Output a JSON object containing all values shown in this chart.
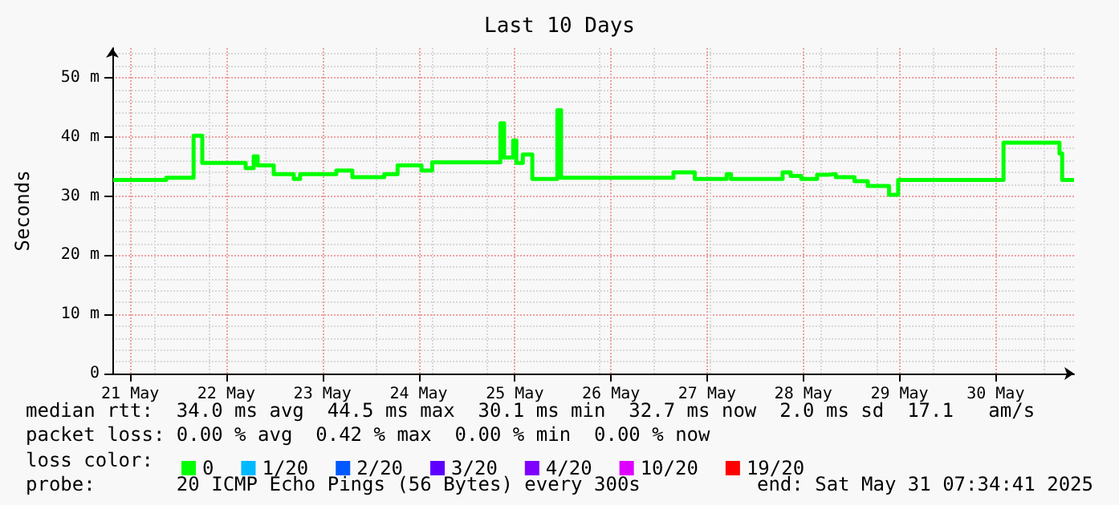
{
  "chart_data": {
    "type": "line",
    "title": "Last 10 Days",
    "ylabel": "Seconds",
    "xlim": [
      "2025-05-21T07:34",
      "2025-05-31T07:34"
    ],
    "xticks": [
      {
        "value": "2025-05-21T12:00",
        "label": "21 May"
      },
      {
        "value": "2025-05-22T12:00",
        "label": "22 May"
      },
      {
        "value": "2025-05-23T12:00",
        "label": "23 May"
      },
      {
        "value": "2025-05-24T12:00",
        "label": "24 May"
      },
      {
        "value": "2025-05-25T12:00",
        "label": "25 May"
      },
      {
        "value": "2025-05-26T12:00",
        "label": "26 May"
      },
      {
        "value": "2025-05-27T12:00",
        "label": "27 May"
      },
      {
        "value": "2025-05-28T12:00",
        "label": "28 May"
      },
      {
        "value": "2025-05-29T12:00",
        "label": "29 May"
      },
      {
        "value": "2025-05-30T12:00",
        "label": "30 May"
      }
    ],
    "ylim": [
      0,
      55
    ],
    "yticks": [
      0,
      {
        "value": 10,
        "label": "10 m"
      },
      {
        "value": 20,
        "label": "20 m"
      },
      {
        "value": 30,
        "label": "30 m"
      },
      {
        "value": 40,
        "label": "40 m"
      },
      {
        "value": 50,
        "label": "50 m"
      }
    ],
    "grid": true,
    "legend": "bottom left",
    "series": [
      {
        "name": "0",
        "color": "#00ff00",
        "x": [
          "2025-05-21T07:45",
          "2025-05-21T21:00",
          "2025-05-21T21:00",
          "2025-05-22T03:50",
          "2025-05-22T03:50",
          "2025-05-22T06:00",
          "2025-05-22T06:00",
          "2025-05-22T16:50",
          "2025-05-22T16:50",
          "2025-05-22T18:50",
          "2025-05-22T18:50",
          "2025-05-22T19:50",
          "2025-05-22T19:50",
          "2025-05-22T23:50",
          "2025-05-22T23:50",
          "2025-05-23T04:50",
          "2025-05-23T04:50",
          "2025-05-23T06:25",
          "2025-05-23T06:25",
          "2025-05-23T15:27",
          "2025-05-23T15:27",
          "2025-05-23T19:27",
          "2025-05-23T19:27",
          "2025-05-24T03:26",
          "2025-05-24T03:26",
          "2025-05-24T06:45",
          "2025-05-24T06:45",
          "2025-05-24T12:43",
          "2025-05-24T12:43",
          "2025-05-24T15:23",
          "2025-05-24T15:23",
          "2025-05-25T08:24",
          "2025-05-25T08:24",
          "2025-05-25T09:20",
          "2025-05-25T09:20",
          "2025-05-25T11:35",
          "2025-05-25T11:35",
          "2025-05-25T12:23",
          "2025-05-25T12:23",
          "2025-05-25T14:00",
          "2025-05-25T14:00",
          "2025-05-25T16:22",
          "2025-05-25T16:22",
          "2025-05-25T22:37",
          "2025-05-25T22:37",
          "2025-05-25T23:33",
          "2025-05-25T23:33",
          "2025-05-27T03:36",
          "2025-05-27T03:36",
          "2025-05-27T08:54",
          "2025-05-27T08:54",
          "2025-05-27T16:52",
          "2025-05-27T16:52",
          "2025-05-27T17:57",
          "2025-05-27T17:57",
          "2025-05-28T06:50",
          "2025-05-28T06:50",
          "2025-05-28T08:50",
          "2025-05-28T08:50",
          "2025-05-28T11:29",
          "2025-05-28T11:29",
          "2025-05-28T15:27",
          "2025-05-28T15:27",
          "2025-05-28T18:07",
          "2025-05-28T18:07",
          "2025-05-28T20:07",
          "2025-05-28T20:07",
          "2025-05-29T00:46",
          "2025-05-29T00:46",
          "2025-05-29T04:05",
          "2025-05-29T04:05",
          "2025-05-29T09:24",
          "2025-05-29T09:24",
          "2025-05-29T11:40",
          "2025-05-29T11:40",
          "2025-05-30T13:58",
          "2025-05-30T13:58",
          "2025-05-31T03:56",
          "2025-05-31T03:56",
          "2025-05-31T04:36",
          "2025-05-31T04:36",
          "2025-05-31T07:34"
        ],
        "values": [
          32.7,
          32.7,
          33.1,
          33.1,
          40.2,
          40.2,
          35.6,
          35.6,
          34.7,
          34.7,
          36.7,
          36.7,
          35.2,
          35.2,
          33.7,
          33.7,
          32.9,
          32.9,
          33.7,
          33.7,
          34.3,
          34.3,
          33.2,
          33.2,
          33.7,
          33.7,
          35.2,
          35.2,
          34.3,
          34.3,
          35.7,
          35.7,
          42.3,
          42.3,
          36.5,
          36.5,
          39.4,
          39.4,
          35.6,
          35.6,
          37.0,
          37.0,
          32.9,
          32.9,
          44.5,
          44.5,
          33.1,
          33.1,
          34.0,
          34.0,
          32.9,
          32.9,
          33.7,
          33.7,
          32.9,
          32.9,
          34.0,
          34.0,
          33.4,
          33.4,
          32.9,
          32.9,
          33.6,
          33.6,
          33.7,
          33.7,
          33.2,
          33.2,
          32.5,
          32.5,
          31.7,
          31.7,
          30.2,
          30.2,
          32.7,
          32.7,
          39.0,
          39.0,
          37.2,
          37.2,
          32.7,
          32.7
        ]
      },
      {
        "name": "1/20",
        "color": "#00b8ff"
      },
      {
        "name": "2/20",
        "color": "#0059ff"
      },
      {
        "name": "3/20",
        "color": "#5e00ff"
      },
      {
        "name": "4/20",
        "color": "#7e00ff"
      },
      {
        "name": "10/20",
        "color": "#dd00ff"
      },
      {
        "name": "19/20",
        "color": "#ff0000"
      }
    ],
    "annotations": [
      "median rtt:  34.0 ms avg  44.5 ms max  30.1 ms min  32.7 ms now  2.0 ms sd  17.1   am/s",
      "packet loss: 0.00 % avg  0.42 % max  0.00 % min  0.00 % now",
      "loss color:",
      "probe:       20 ICMP Echo Pings (56 Bytes) every 300s",
      "end: Sat May 31 07:34:41 2025"
    ]
  }
}
